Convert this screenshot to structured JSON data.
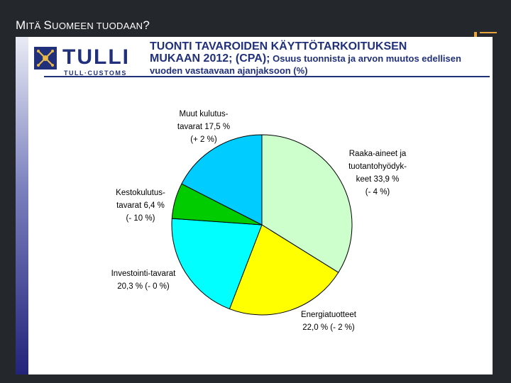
{
  "slide": {
    "title_first_big": "M",
    "title_first_rest": "ITÄ ",
    "title_second_big": "S",
    "title_second_rest": "UOMEEN TUODAAN",
    "title_end": "?"
  },
  "logo": {
    "name": "TULLI",
    "subtitle": "TULL·CUSTOMS"
  },
  "colors": {
    "brand": "#20307a",
    "raaka": "#ccffcc",
    "energia": "#ffff00",
    "investointi": "#00ffff",
    "kesto": "#00cc00",
    "muut": "#00ccff"
  },
  "chart_data": {
    "type": "pie",
    "title_line1": "TUONTI TAVAROIDEN KÄYTTÖTARKOITUKSEN",
    "title_line2_bold": "MUKAAN 2012; (CPA);",
    "title_line2_rest": " Osuus tuonnista ja arvon muutos edellisen",
    "title_line3": "vuoden vastaavaan ajanjaksoon (%)",
    "slices": [
      {
        "name": "Raaka-aineet ja tuotantohyödykkeet",
        "value": 33.9,
        "change": -4,
        "color": "#ccffcc",
        "label_lines": [
          "Raaka-aineet ja",
          "tuotantohyödyk-",
          "keet 33,9 %",
          "(- 4 %)"
        ]
      },
      {
        "name": "Energiatuotteet",
        "value": 22.0,
        "change": -2,
        "color": "#ffff00",
        "label_lines": [
          "Energiatuotteet",
          "22,0 % (- 2 %)"
        ]
      },
      {
        "name": "Investointi-tavarat",
        "value": 20.3,
        "change": 0,
        "color": "#00ffff",
        "label_lines": [
          "Investointi-tavarat",
          "20,3 % (- 0 %)"
        ]
      },
      {
        "name": "Kestokulutustavarat",
        "value": 6.4,
        "change": -10,
        "color": "#00cc00",
        "label_lines": [
          "Kestokulutus-",
          "tavarat 6,4 %",
          "(- 10 %)"
        ]
      },
      {
        "name": "Muut kulutustavarat",
        "value": 17.5,
        "change": 2,
        "color": "#00ccff",
        "label_lines": [
          "Muut kulutus-",
          "tavarat 17,5 %",
          "(+ 2 %)"
        ]
      }
    ]
  }
}
